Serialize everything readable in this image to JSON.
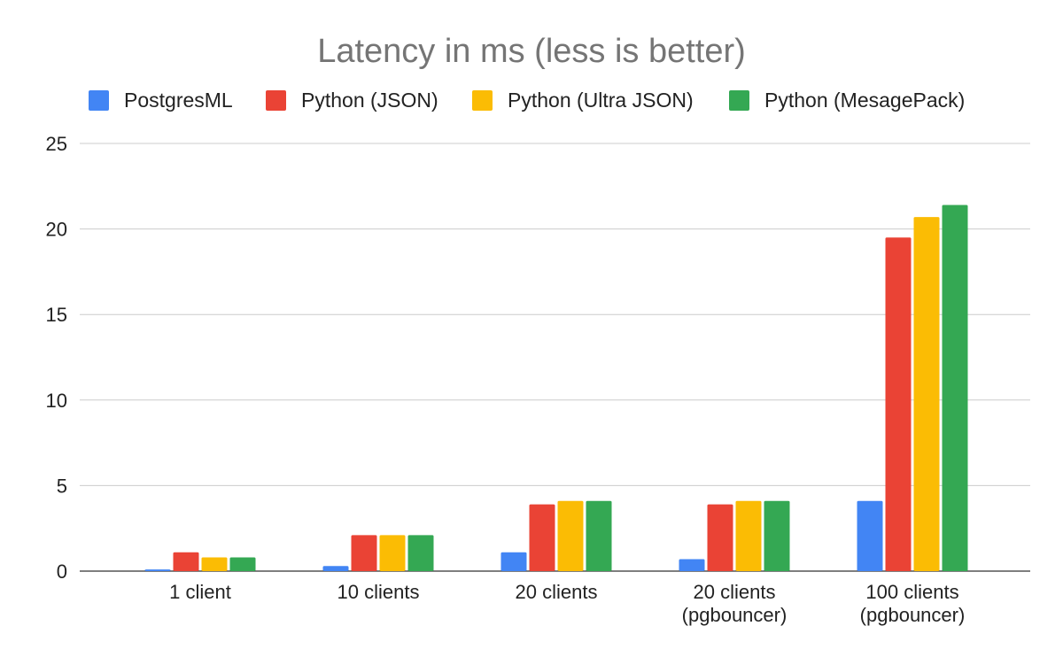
{
  "chart_data": {
    "type": "bar",
    "title": "Latency in ms (less is better)",
    "xlabel": "",
    "ylabel": "",
    "ylim": [
      0,
      25
    ],
    "yticks": [
      "0",
      "5",
      "10",
      "15",
      "20",
      "25"
    ],
    "grid": true,
    "legend_position": "top",
    "categories": [
      [
        "1 client"
      ],
      [
        "10 clients"
      ],
      [
        "20 clients"
      ],
      [
        "20 clients",
        "(pgbouncer)"
      ],
      [
        "100 clients",
        "(pgbouncer)"
      ]
    ],
    "series": [
      {
        "name": "PostgresML",
        "color": "#4285F4",
        "values": [
          0.1,
          0.3,
          1.1,
          0.7,
          4.1
        ]
      },
      {
        "name": "Python (JSON)",
        "color": "#EA4335",
        "values": [
          1.1,
          2.1,
          3.9,
          3.9,
          19.5
        ]
      },
      {
        "name": "Python (Ultra JSON)",
        "color": "#FBBC04",
        "values": [
          0.8,
          2.1,
          4.1,
          4.1,
          20.7
        ]
      },
      {
        "name": "Python (MesagePack)",
        "color": "#34A853",
        "values": [
          0.8,
          2.1,
          4.1,
          4.1,
          21.4
        ]
      }
    ]
  }
}
